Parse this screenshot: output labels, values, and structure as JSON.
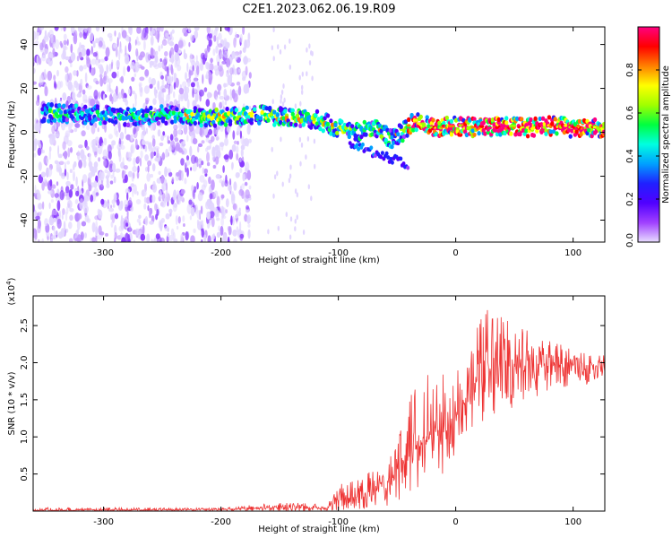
{
  "title": "C2E1.2023.062.06.19.R09",
  "chart_data": [
    {
      "type": "heatmap",
      "xlabel": "Height of straight line (km)",
      "ylabel": "Frequency (Hz)",
      "xlim": [
        -360,
        127
      ],
      "ylim": [
        -50,
        48
      ],
      "xticks": [
        -300,
        -200,
        -100,
        0,
        100
      ],
      "xtick_labels": [
        "-300",
        "-200",
        "-100",
        "0",
        "100"
      ],
      "yticks": [
        -40,
        -20,
        0,
        20,
        40
      ],
      "ytick_labels": [
        "-40",
        "-20",
        "0",
        "20",
        "40"
      ],
      "colorbar": {
        "label": "Normalized spectral amplitude",
        "range": [
          0,
          1
        ],
        "ticks": [
          0.0,
          0.2,
          0.4,
          0.6,
          0.8
        ],
        "tick_labels": [
          "0.0",
          "0.2",
          "0.4",
          "0.6",
          "0.8"
        ],
        "colors": [
          "#e8ddff",
          "#a040ff",
          "#5000ff",
          "#2020ff",
          "#00a0ff",
          "#00ffe0",
          "#00ff40",
          "#a0ff00",
          "#ffff00",
          "#ff8000",
          "#ff0000",
          "#ff0080"
        ]
      },
      "ridge": [
        {
          "x": -350,
          "f": 9
        },
        {
          "x": -320,
          "f": 8
        },
        {
          "x": -300,
          "f": 8
        },
        {
          "x": -280,
          "f": 7
        },
        {
          "x": -250,
          "f": 8
        },
        {
          "x": -220,
          "f": 7
        },
        {
          "x": -200,
          "f": 7
        },
        {
          "x": -170,
          "f": 8
        },
        {
          "x": -150,
          "f": 7
        },
        {
          "x": -120,
          "f": 6
        },
        {
          "x": -100,
          "f": 2
        },
        {
          "x": -80,
          "f": 0
        },
        {
          "x": -70,
          "f": 3
        },
        {
          "x": -55,
          "f": -3
        },
        {
          "x": -45,
          "f": 0
        },
        {
          "x": -35,
          "f": 5
        },
        {
          "x": -20,
          "f": 2
        },
        {
          "x": 0,
          "f": 3
        },
        {
          "x": 20,
          "f": 2
        },
        {
          "x": 40,
          "f": 3
        },
        {
          "x": 60,
          "f": 2
        },
        {
          "x": 80,
          "f": 3
        },
        {
          "x": 100,
          "f": 2
        },
        {
          "x": 127,
          "f": 2
        }
      ],
      "plume": {
        "x_from": -90,
        "x_to": -40,
        "f_from": -5,
        "f_to": -15
      }
    },
    {
      "type": "line",
      "xlabel": "Height of straight line (km)",
      "ylabel": "SNR (10 * v/v)",
      "y_multiplier": "(x10",
      "y_multiplier_exp": "4",
      "y_multiplier_close": ")",
      "xlim": [
        -360,
        127
      ],
      "ylim": [
        0,
        2.9
      ],
      "xticks": [
        -300,
        -200,
        -100,
        0,
        100
      ],
      "xtick_labels": [
        "-300",
        "-200",
        "-100",
        "0",
        "100"
      ],
      "yticks": [
        0.5,
        1.0,
        1.5,
        2.0,
        2.5
      ],
      "ytick_labels": [
        "0.5",
        "1.0",
        "1.5",
        "2.0",
        "2.5"
      ],
      "color": "#ee3333",
      "envelope": [
        {
          "x": -360,
          "low": 0.0,
          "mean": 0.01,
          "high": 0.05
        },
        {
          "x": -200,
          "low": 0.0,
          "mean": 0.02,
          "high": 0.04
        },
        {
          "x": -150,
          "low": 0.0,
          "mean": 0.05,
          "high": 0.12
        },
        {
          "x": -110,
          "low": 0.0,
          "mean": 0.04,
          "high": 0.1
        },
        {
          "x": -100,
          "low": 0.0,
          "mean": 0.15,
          "high": 0.35
        },
        {
          "x": -80,
          "low": 0.02,
          "mean": 0.22,
          "high": 0.5
        },
        {
          "x": -60,
          "low": 0.05,
          "mean": 0.35,
          "high": 0.7
        },
        {
          "x": -40,
          "low": 0.2,
          "mean": 0.75,
          "high": 1.55
        },
        {
          "x": -30,
          "low": 0.3,
          "mean": 0.9,
          "high": 1.9
        },
        {
          "x": -10,
          "low": 0.5,
          "mean": 1.15,
          "high": 1.9
        },
        {
          "x": 0,
          "low": 0.7,
          "mean": 1.3,
          "high": 1.95
        },
        {
          "x": 15,
          "low": 1.1,
          "mean": 1.7,
          "high": 2.55
        },
        {
          "x": 30,
          "low": 1.3,
          "mean": 1.95,
          "high": 2.8
        },
        {
          "x": 50,
          "low": 1.4,
          "mean": 1.95,
          "high": 2.6
        },
        {
          "x": 80,
          "low": 1.6,
          "mean": 1.98,
          "high": 2.3
        },
        {
          "x": 110,
          "low": 1.7,
          "mean": 1.97,
          "high": 2.15
        },
        {
          "x": 127,
          "low": 1.75,
          "mean": 1.95,
          "high": 2.1
        }
      ]
    }
  ]
}
